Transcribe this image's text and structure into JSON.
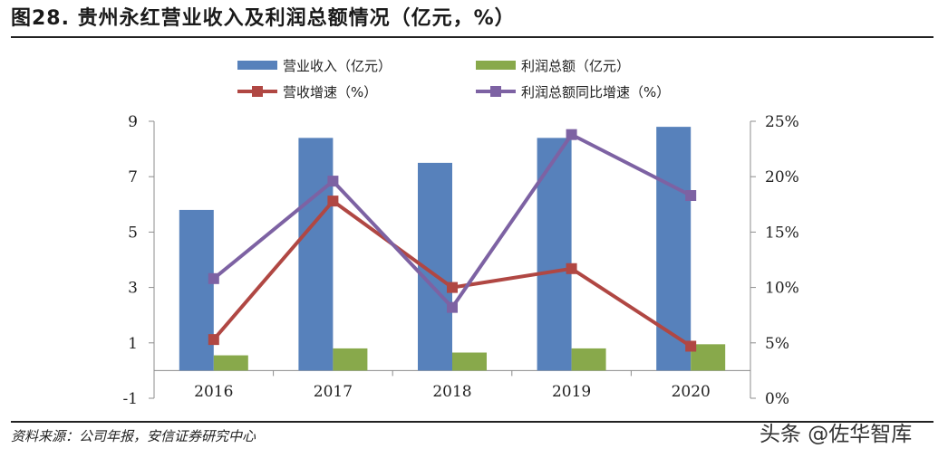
{
  "header": {
    "title": "图28. 贵州永红营业收入及利润总额情况（亿元，%）"
  },
  "footer": {
    "source": "资料来源：公司年报，安信证券研究中心",
    "watermark": "头条 @佐华智库"
  },
  "colors": {
    "revenue_bar": "#5781bb",
    "profit_bar": "#88a94b",
    "revenue_growth": "#b04743",
    "profit_growth": "#7d62a3",
    "axis": "#8c8c8c"
  },
  "chart_data": {
    "type": "bar",
    "title": "贵州永红营业收入及利润总额情况（亿元，%）",
    "categories": [
      "2016",
      "2017",
      "2018",
      "2019",
      "2020"
    ],
    "y_left": {
      "lim": [
        -1,
        9
      ],
      "ticks": [
        "9",
        "7",
        "5",
        "3",
        "1",
        "-1"
      ],
      "tick_values": [
        9,
        7,
        5,
        3,
        1,
        -1
      ]
    },
    "y_right": {
      "lim": [
        0,
        25
      ],
      "ticks": [
        "25%",
        "20%",
        "15%",
        "10%",
        "5%",
        "0%"
      ],
      "tick_values": [
        25,
        20,
        15,
        10,
        5,
        0
      ]
    },
    "series": [
      {
        "name": "营业收入（亿元）",
        "type": "bar",
        "axis": "left",
        "values": [
          5.8,
          8.4,
          7.5,
          8.4,
          8.8
        ]
      },
      {
        "name": "利润总额（亿元）",
        "type": "bar",
        "axis": "left",
        "values": [
          0.55,
          0.8,
          0.65,
          0.8,
          0.95
        ]
      },
      {
        "name": "营收增速（%）",
        "type": "line",
        "axis": "right",
        "values": [
          5.3,
          17.8,
          10.0,
          11.7,
          4.7
        ]
      },
      {
        "name": "利润总额同比增速（%）",
        "type": "line",
        "axis": "right",
        "values": [
          10.8,
          19.6,
          8.2,
          23.8,
          18.3
        ]
      }
    ]
  }
}
